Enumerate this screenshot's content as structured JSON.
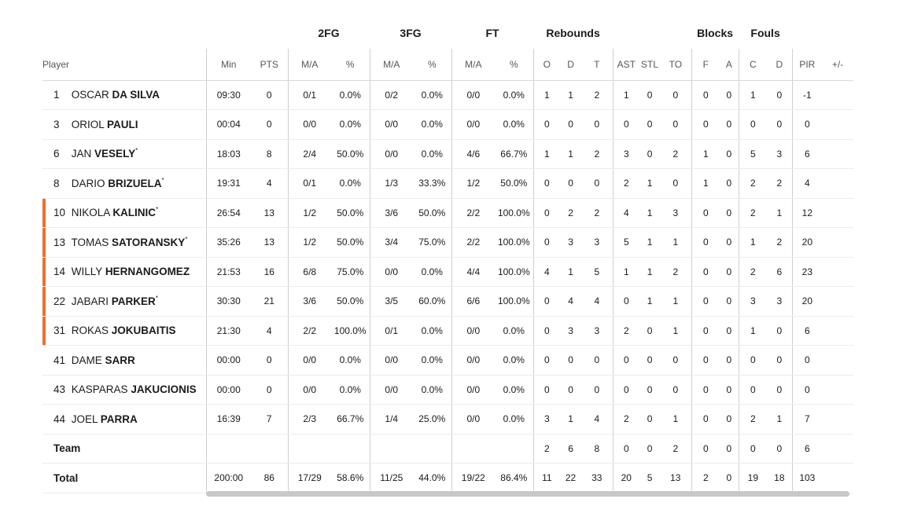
{
  "groups": {
    "fg2": "2FG",
    "fg3": "3FG",
    "ft": "FT",
    "reb": "Rebounds",
    "blk": "Blocks",
    "fouls": "Fouls"
  },
  "columns": {
    "player": "Player",
    "min": "Min",
    "pts": "PTS",
    "fg2_ma": "M/A",
    "fg2_pct": "%",
    "fg3_ma": "M/A",
    "fg3_pct": "%",
    "ft_ma": "M/A",
    "ft_pct": "%",
    "reb_o": "O",
    "reb_d": "D",
    "reb_t": "T",
    "ast": "AST",
    "stl": "STL",
    "to": "TO",
    "blk_f": "F",
    "blk_a": "A",
    "foul_c": "C",
    "foul_d": "D",
    "pir": "PIR",
    "pm": "+/-"
  },
  "players": [
    {
      "num": "1",
      "first": "OSCAR",
      "last": "DA SILVA",
      "starter": false,
      "on_court": false,
      "min": "09:30",
      "pts": "0",
      "fg2_ma": "0/1",
      "fg2_pct": "0.0%",
      "fg3_ma": "0/2",
      "fg3_pct": "0.0%",
      "ft_ma": "0/0",
      "ft_pct": "0.0%",
      "o": "1",
      "d": "1",
      "t": "2",
      "ast": "1",
      "stl": "0",
      "to": "0",
      "bf": "0",
      "ba": "0",
      "fc": "1",
      "fd": "0",
      "pir": "-1",
      "pm": ""
    },
    {
      "num": "3",
      "first": "ORIOL",
      "last": "PAULI",
      "starter": false,
      "on_court": false,
      "min": "00:04",
      "pts": "0",
      "fg2_ma": "0/0",
      "fg2_pct": "0.0%",
      "fg3_ma": "0/0",
      "fg3_pct": "0.0%",
      "ft_ma": "0/0",
      "ft_pct": "0.0%",
      "o": "0",
      "d": "0",
      "t": "0",
      "ast": "0",
      "stl": "0",
      "to": "0",
      "bf": "0",
      "ba": "0",
      "fc": "0",
      "fd": "0",
      "pir": "0",
      "pm": ""
    },
    {
      "num": "6",
      "first": "JAN",
      "last": "VESELY",
      "starter": true,
      "on_court": false,
      "min": "18:03",
      "pts": "8",
      "fg2_ma": "2/4",
      "fg2_pct": "50.0%",
      "fg3_ma": "0/0",
      "fg3_pct": "0.0%",
      "ft_ma": "4/6",
      "ft_pct": "66.7%",
      "o": "1",
      "d": "1",
      "t": "2",
      "ast": "3",
      "stl": "0",
      "to": "2",
      "bf": "1",
      "ba": "0",
      "fc": "5",
      "fd": "3",
      "pir": "6",
      "pm": ""
    },
    {
      "num": "8",
      "first": "DARIO",
      "last": "BRIZUELA",
      "starter": true,
      "on_court": false,
      "min": "19:31",
      "pts": "4",
      "fg2_ma": "0/1",
      "fg2_pct": "0.0%",
      "fg3_ma": "1/3",
      "fg3_pct": "33.3%",
      "ft_ma": "1/2",
      "ft_pct": "50.0%",
      "o": "0",
      "d": "0",
      "t": "0",
      "ast": "2",
      "stl": "1",
      "to": "0",
      "bf": "1",
      "ba": "0",
      "fc": "2",
      "fd": "2",
      "pir": "4",
      "pm": ""
    },
    {
      "num": "10",
      "first": "NIKOLA",
      "last": "KALINIC",
      "starter": true,
      "on_court": true,
      "min": "26:54",
      "pts": "13",
      "fg2_ma": "1/2",
      "fg2_pct": "50.0%",
      "fg3_ma": "3/6",
      "fg3_pct": "50.0%",
      "ft_ma": "2/2",
      "ft_pct": "100.0%",
      "o": "0",
      "d": "2",
      "t": "2",
      "ast": "4",
      "stl": "1",
      "to": "3",
      "bf": "0",
      "ba": "0",
      "fc": "2",
      "fd": "1",
      "pir": "12",
      "pm": ""
    },
    {
      "num": "13",
      "first": "TOMAS",
      "last": "SATORANSKY",
      "starter": true,
      "on_court": true,
      "min": "35:26",
      "pts": "13",
      "fg2_ma": "1/2",
      "fg2_pct": "50.0%",
      "fg3_ma": "3/4",
      "fg3_pct": "75.0%",
      "ft_ma": "2/2",
      "ft_pct": "100.0%",
      "o": "0",
      "d": "3",
      "t": "3",
      "ast": "5",
      "stl": "1",
      "to": "1",
      "bf": "0",
      "ba": "0",
      "fc": "1",
      "fd": "2",
      "pir": "20",
      "pm": ""
    },
    {
      "num": "14",
      "first": "WILLY",
      "last": "HERNANGOMEZ",
      "starter": false,
      "on_court": true,
      "min": "21:53",
      "pts": "16",
      "fg2_ma": "6/8",
      "fg2_pct": "75.0%",
      "fg3_ma": "0/0",
      "fg3_pct": "0.0%",
      "ft_ma": "4/4",
      "ft_pct": "100.0%",
      "o": "4",
      "d": "1",
      "t": "5",
      "ast": "1",
      "stl": "1",
      "to": "2",
      "bf": "0",
      "ba": "0",
      "fc": "2",
      "fd": "6",
      "pir": "23",
      "pm": ""
    },
    {
      "num": "22",
      "first": "JABARI",
      "last": "PARKER",
      "starter": true,
      "on_court": true,
      "min": "30:30",
      "pts": "21",
      "fg2_ma": "3/6",
      "fg2_pct": "50.0%",
      "fg3_ma": "3/5",
      "fg3_pct": "60.0%",
      "ft_ma": "6/6",
      "ft_pct": "100.0%",
      "o": "0",
      "d": "4",
      "t": "4",
      "ast": "0",
      "stl": "1",
      "to": "1",
      "bf": "0",
      "ba": "0",
      "fc": "3",
      "fd": "3",
      "pir": "20",
      "pm": ""
    },
    {
      "num": "31",
      "first": "ROKAS",
      "last": "JOKUBAITIS",
      "starter": false,
      "on_court": true,
      "min": "21:30",
      "pts": "4",
      "fg2_ma": "2/2",
      "fg2_pct": "100.0%",
      "fg3_ma": "0/1",
      "fg3_pct": "0.0%",
      "ft_ma": "0/0",
      "ft_pct": "0.0%",
      "o": "0",
      "d": "3",
      "t": "3",
      "ast": "2",
      "stl": "0",
      "to": "1",
      "bf": "0",
      "ba": "0",
      "fc": "1",
      "fd": "0",
      "pir": "6",
      "pm": ""
    },
    {
      "num": "41",
      "first": "DAME",
      "last": "SARR",
      "starter": false,
      "on_court": false,
      "min": "00:00",
      "pts": "0",
      "fg2_ma": "0/0",
      "fg2_pct": "0.0%",
      "fg3_ma": "0/0",
      "fg3_pct": "0.0%",
      "ft_ma": "0/0",
      "ft_pct": "0.0%",
      "o": "0",
      "d": "0",
      "t": "0",
      "ast": "0",
      "stl": "0",
      "to": "0",
      "bf": "0",
      "ba": "0",
      "fc": "0",
      "fd": "0",
      "pir": "0",
      "pm": ""
    },
    {
      "num": "43",
      "first": "KASPARAS",
      "last": "JAKUCIONIS",
      "starter": false,
      "on_court": false,
      "min": "00:00",
      "pts": "0",
      "fg2_ma": "0/0",
      "fg2_pct": "0.0%",
      "fg3_ma": "0/0",
      "fg3_pct": "0.0%",
      "ft_ma": "0/0",
      "ft_pct": "0.0%",
      "o": "0",
      "d": "0",
      "t": "0",
      "ast": "0",
      "stl": "0",
      "to": "0",
      "bf": "0",
      "ba": "0",
      "fc": "0",
      "fd": "0",
      "pir": "0",
      "pm": ""
    },
    {
      "num": "44",
      "first": "JOEL",
      "last": "PARRA",
      "starter": false,
      "on_court": false,
      "min": "16:39",
      "pts": "7",
      "fg2_ma": "2/3",
      "fg2_pct": "66.7%",
      "fg3_ma": "1/4",
      "fg3_pct": "25.0%",
      "ft_ma": "0/0",
      "ft_pct": "0.0%",
      "o": "3",
      "d": "1",
      "t": "4",
      "ast": "2",
      "stl": "0",
      "to": "1",
      "bf": "0",
      "ba": "0",
      "fc": "2",
      "fd": "1",
      "pir": "7",
      "pm": ""
    }
  ],
  "team_row": {
    "label": "Team",
    "min": "",
    "pts": "",
    "fg2_ma": "",
    "fg2_pct": "",
    "fg3_ma": "",
    "fg3_pct": "",
    "ft_ma": "",
    "ft_pct": "",
    "o": "2",
    "d": "6",
    "t": "8",
    "ast": "0",
    "stl": "0",
    "to": "2",
    "bf": "0",
    "ba": "0",
    "fc": "0",
    "fd": "0",
    "pir": "6",
    "pm": ""
  },
  "total_row": {
    "label": "Total",
    "min": "200:00",
    "pts": "86",
    "fg2_ma": "17/29",
    "fg2_pct": "58.6%",
    "fg3_ma": "11/25",
    "fg3_pct": "44.0%",
    "ft_ma": "19/22",
    "ft_pct": "86.4%",
    "o": "11",
    "d": "22",
    "t": "33",
    "ast": "20",
    "stl": "5",
    "to": "13",
    "bf": "2",
    "ba": "0",
    "fc": "19",
    "fd": "18",
    "pir": "103",
    "pm": ""
  },
  "starter_mark": "*",
  "colors": {
    "on_court_bar": "#f26d2c",
    "separator": "#cfcfcf",
    "scrollbar": "#c8c8c8"
  }
}
